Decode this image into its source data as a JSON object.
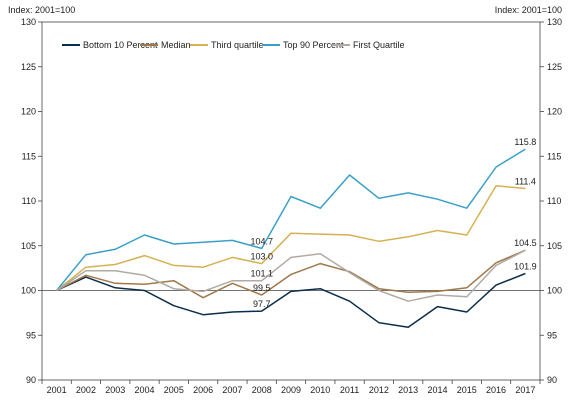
{
  "chart_data": {
    "type": "line",
    "index_label_left": "Index: 2001=100",
    "index_label_right": "Index: 2001=100",
    "x": [
      "2001",
      "2002",
      "2003",
      "2004",
      "2005",
      "2006",
      "2007",
      "2008",
      "2009",
      "2010",
      "2011",
      "2012",
      "2013",
      "2014",
      "2015",
      "2016",
      "2017"
    ],
    "ylim": [
      90,
      130
    ],
    "yticks": [
      90,
      95,
      100,
      105,
      110,
      115,
      120,
      125,
      130
    ],
    "grid": false,
    "legend_placement": "top-left",
    "series": [
      {
        "name": "Bottom 10 Percent",
        "color": "#0b2d4a",
        "values": [
          100,
          101.5,
          100.3,
          100.0,
          98.3,
          97.3,
          97.6,
          97.7,
          99.9,
          100.2,
          98.8,
          96.4,
          95.9,
          98.2,
          97.6,
          100.6,
          101.9
        ]
      },
      {
        "name": "Median",
        "color": "#a0784a",
        "values": [
          100,
          101.7,
          100.8,
          100.7,
          101.1,
          99.2,
          100.8,
          99.5,
          101.8,
          103.0,
          102.1,
          100.2,
          99.8,
          99.9,
          100.3,
          103.1,
          104.5
        ]
      },
      {
        "name": "Third quartile",
        "color": "#d4b253",
        "values": [
          100,
          102.6,
          102.9,
          103.9,
          102.8,
          102.6,
          103.7,
          103.0,
          106.4,
          106.3,
          106.2,
          105.5,
          106.0,
          106.7,
          106.2,
          111.7,
          111.4
        ]
      },
      {
        "name": "Top 90 Percent",
        "color": "#3aa0c8",
        "values": [
          100,
          104.0,
          104.6,
          106.2,
          105.2,
          105.4,
          105.6,
          104.7,
          110.5,
          109.2,
          112.9,
          110.3,
          110.9,
          110.2,
          109.2,
          113.8,
          115.8
        ]
      },
      {
        "name": "First Quartile",
        "color": "#b0aaa4",
        "values": [
          100,
          102.2,
          102.2,
          101.7,
          100.2,
          99.9,
          101.1,
          101.1,
          103.7,
          104.1,
          102.0,
          100.0,
          98.8,
          99.5,
          99.3,
          102.8,
          104.5
        ]
      }
    ],
    "annotations": [
      {
        "text": "104.7",
        "x": "2008",
        "y": 104.7,
        "anchor": "above"
      },
      {
        "text": "103.0",
        "x": "2008",
        "y": 103.0,
        "anchor": "above"
      },
      {
        "text": "101.1",
        "x": "2008",
        "y": 101.1,
        "anchor": "above"
      },
      {
        "text": "99.5",
        "x": "2008",
        "y": 99.5,
        "anchor": "above"
      },
      {
        "text": "97.7",
        "x": "2008",
        "y": 97.7,
        "anchor": "above"
      },
      {
        "text": "115.8",
        "x": "2017",
        "y": 115.8,
        "anchor": "above"
      },
      {
        "text": "111.4",
        "x": "2017",
        "y": 111.4,
        "anchor": "above"
      },
      {
        "text": "104.5",
        "x": "2017",
        "y": 104.5,
        "anchor": "above"
      },
      {
        "text": "101.9",
        "x": "2017",
        "y": 101.9,
        "anchor": "above"
      }
    ]
  }
}
